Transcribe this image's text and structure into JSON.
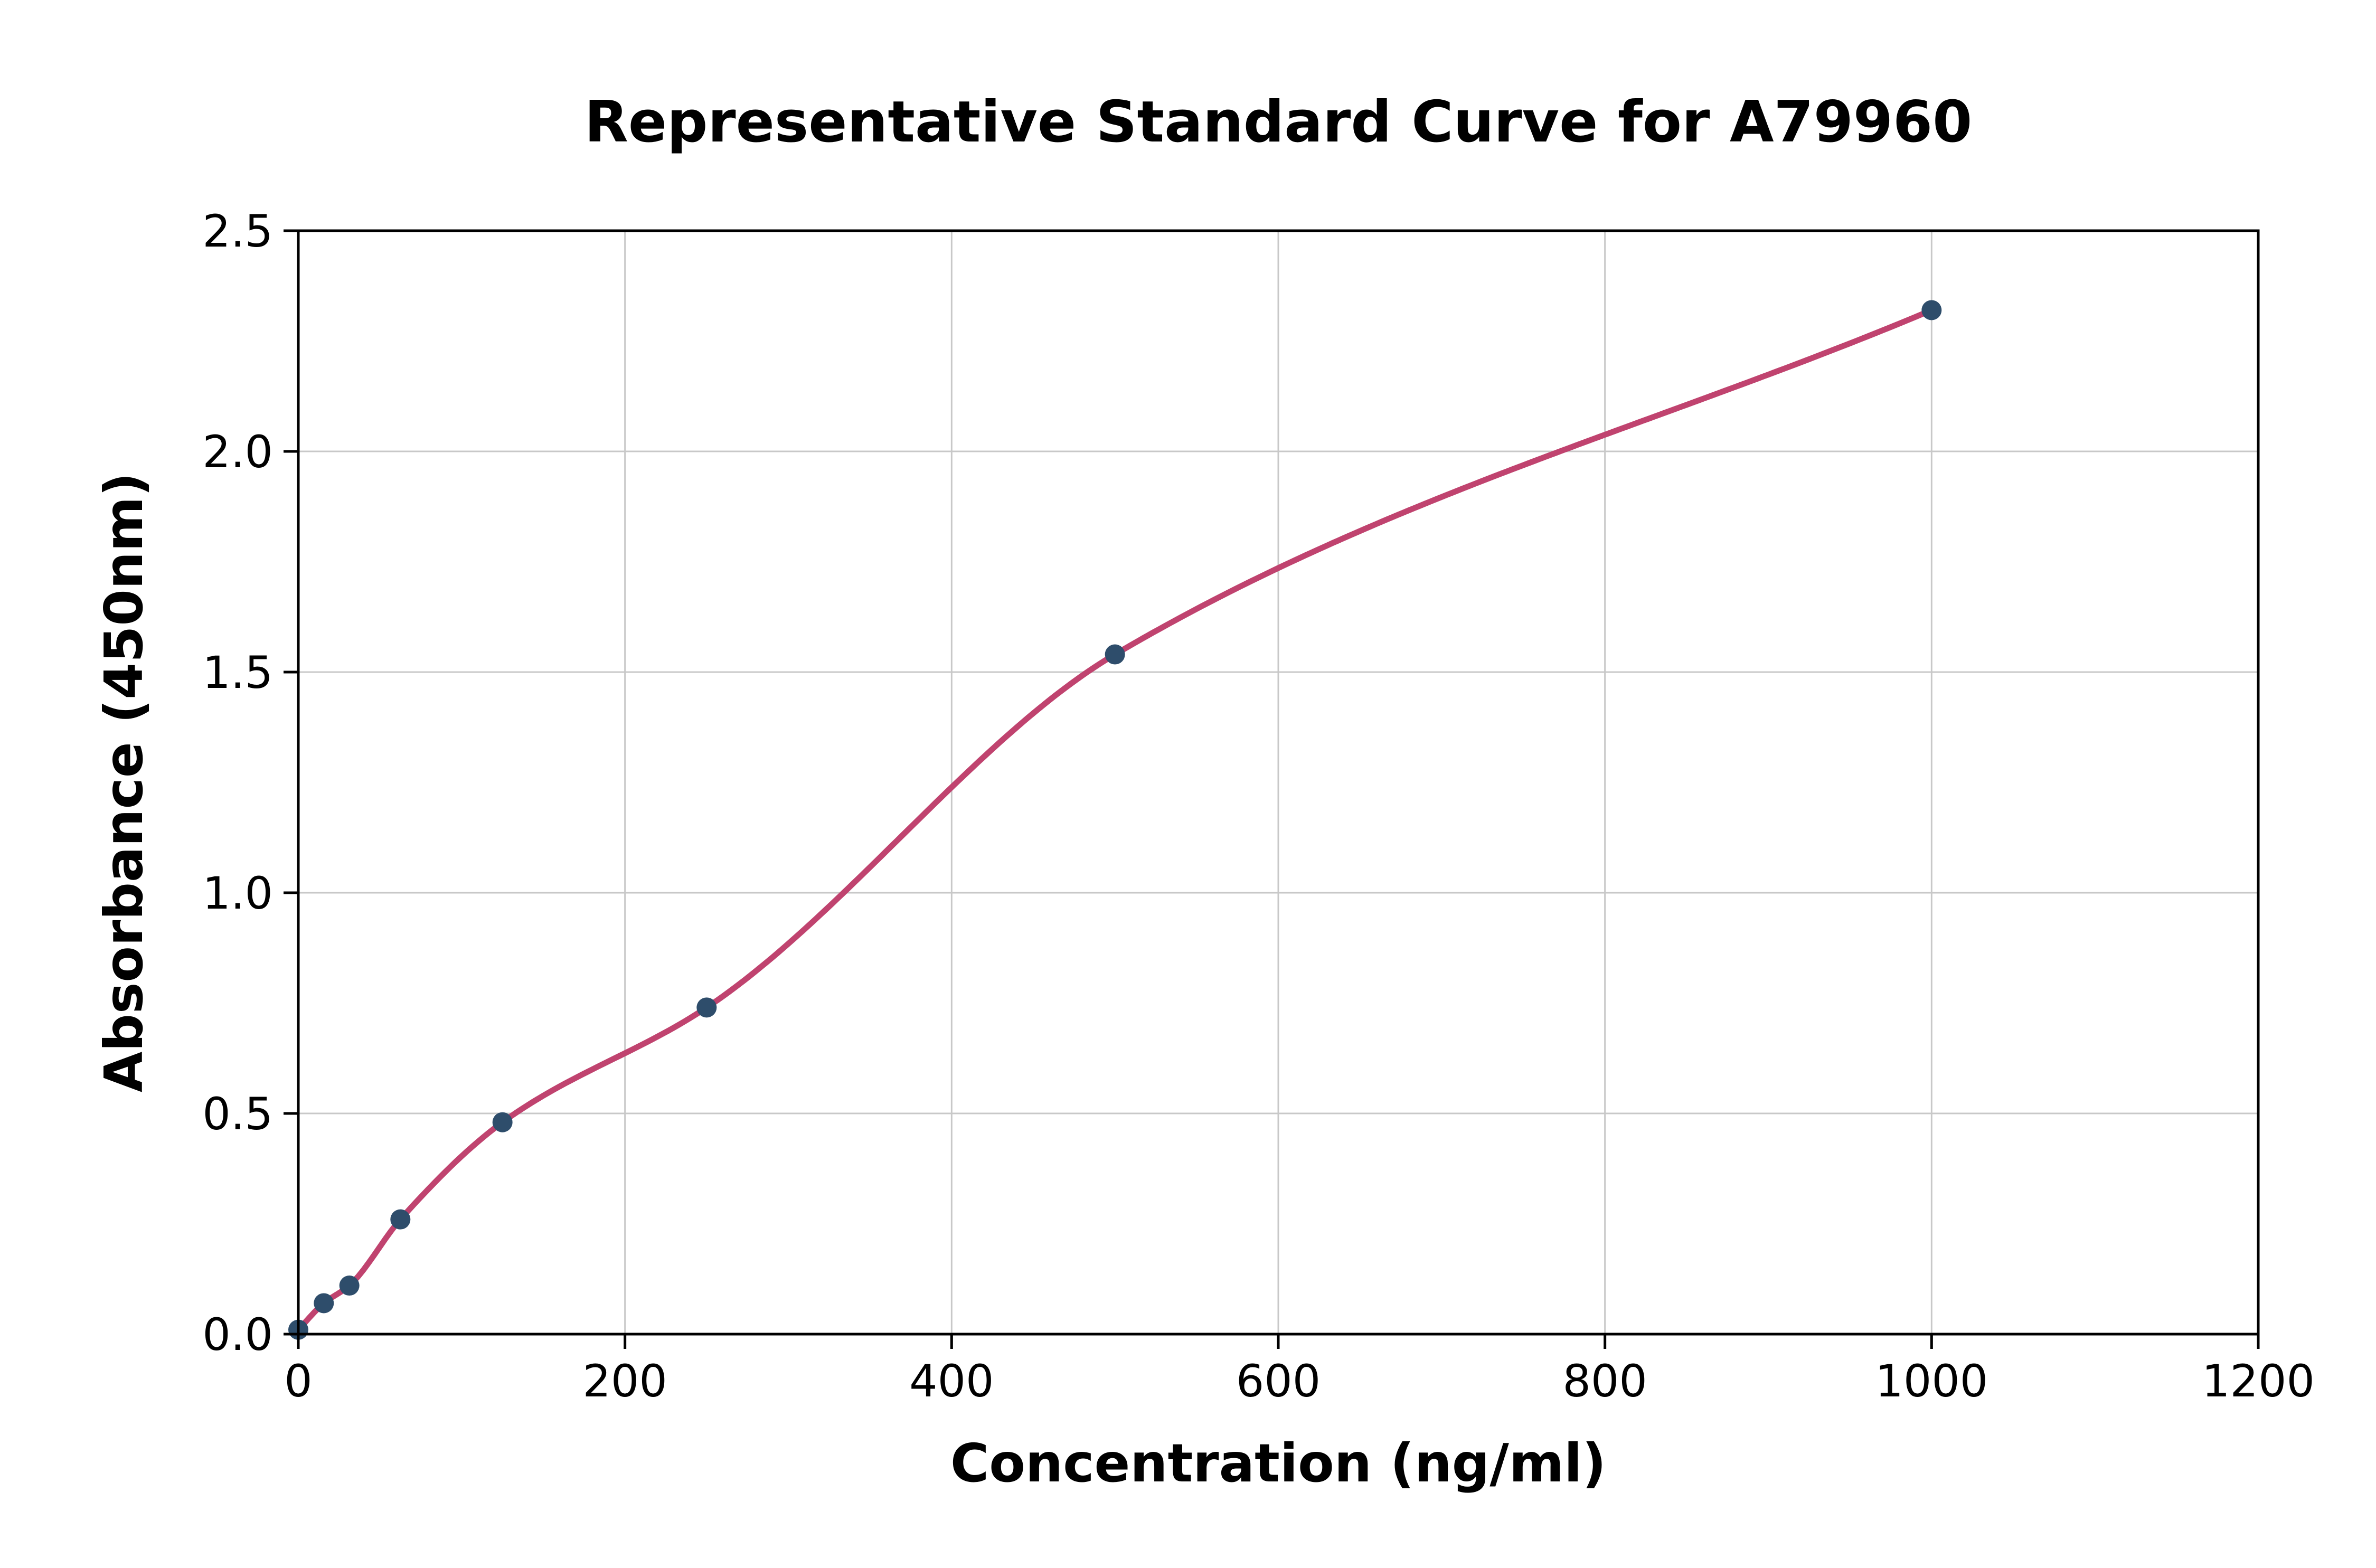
{
  "chart_data": {
    "type": "scatter",
    "title": "Representative Standard Curve for A79960",
    "xlabel": "Concentration (ng/ml)",
    "ylabel": "Absorbance (450nm)",
    "xlim": [
      0,
      1200
    ],
    "ylim": [
      0,
      2.5
    ],
    "x_ticks": [
      0,
      200,
      400,
      600,
      800,
      1000,
      1200
    ],
    "x_tick_labels": [
      "0",
      "200",
      "400",
      "600",
      "800",
      "1000",
      "1200"
    ],
    "y_ticks": [
      0,
      0.5,
      1.0,
      1.5,
      2.0,
      2.5
    ],
    "y_tick_labels": [
      "0.0",
      "0.5",
      "1.0",
      "1.5",
      "2.0",
      "2.5"
    ],
    "grid": true,
    "legend": "none",
    "points": [
      {
        "x": 0,
        "y": 0.01
      },
      {
        "x": 15.6,
        "y": 0.07
      },
      {
        "x": 31.25,
        "y": 0.11
      },
      {
        "x": 62.5,
        "y": 0.26
      },
      {
        "x": 125,
        "y": 0.48
      },
      {
        "x": 250,
        "y": 0.74
      },
      {
        "x": 500,
        "y": 1.54
      },
      {
        "x": 1000,
        "y": 2.32
      }
    ],
    "curve": {
      "description": "smooth fitted standard curve through points",
      "x_start": 0,
      "x_end": 1000
    },
    "colors": {
      "point": "#2e4d6b",
      "curve": "#c0436f",
      "grid": "#c8c8c8",
      "axis": "#000000",
      "background": "#ffffff"
    }
  }
}
